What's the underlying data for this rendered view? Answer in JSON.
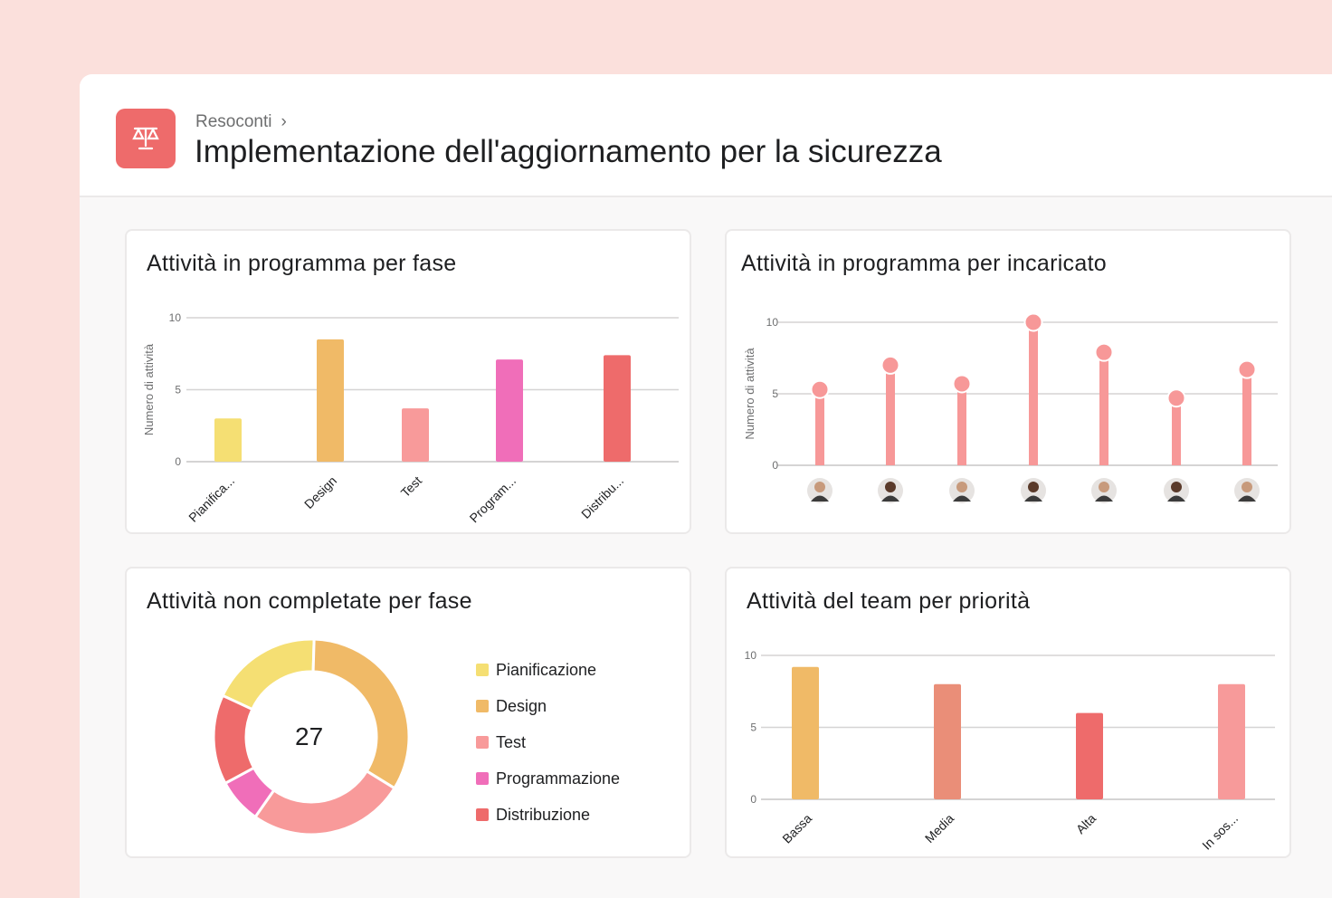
{
  "header": {
    "breadcrumb": "Resoconti",
    "breadcrumb_sep": "›",
    "title": "Implementazione dell'aggiornamento per la sicurezza",
    "icon": "scale-icon",
    "brand_color": "#EE6B6B"
  },
  "cards": {
    "by_phase": {
      "title": "Attività in programma per fase"
    },
    "by_assignee": {
      "title": "Attività in programma per incaricato"
    },
    "incomplete": {
      "title": "Attività non completate per fase"
    },
    "priority": {
      "title": "Attività del team per priorità"
    }
  },
  "chart_data": [
    {
      "type": "bar",
      "ylabel": "Numero di attività",
      "ylim": [
        0,
        10
      ],
      "yticks": [
        "0",
        "5",
        "10"
      ],
      "grid": true,
      "categories": [
        "Pianifica...",
        "Design",
        "Test",
        "Program...",
        "Distribu..."
      ],
      "values": [
        3,
        8.5,
        3.7,
        7.1,
        7.4
      ],
      "colors": [
        "#F5DF73",
        "#F0BA67",
        "#F89A9A",
        "#F06EB9",
        "#EE6B6B"
      ]
    },
    {
      "type": "lollipop",
      "ylabel": "Numero di attività",
      "ylim": [
        0,
        10
      ],
      "yticks": [
        "0",
        "5",
        "10"
      ],
      "grid": true,
      "categories": [
        "avatar",
        "avatar",
        "avatar",
        "avatar",
        "avatar",
        "avatar",
        "avatar"
      ],
      "values": [
        5.3,
        7,
        5.7,
        10,
        7.9,
        4.7,
        6.7
      ],
      "color": "#F79898"
    },
    {
      "type": "pie",
      "donut": true,
      "total": "27",
      "categories": [
        "Pianificazione",
        "Design",
        "Test",
        "Programmazione",
        "Distribuzione"
      ],
      "values": [
        5,
        9,
        7,
        2,
        4
      ],
      "colors": [
        "#F5DF73",
        "#F0BA67",
        "#F89A9A",
        "#F06EB9",
        "#EE6B6B"
      ]
    },
    {
      "type": "bar",
      "ylim": [
        0,
        10
      ],
      "yticks": [
        "0",
        "5",
        "10"
      ],
      "grid": true,
      "categories": [
        "Bassa",
        "Media",
        "Alta",
        "In sos..."
      ],
      "values": [
        9.2,
        8,
        6,
        8
      ],
      "colors": [
        "#F0BA67",
        "#EA8E78",
        "#EE6B6B",
        "#F79A9A"
      ]
    }
  ]
}
